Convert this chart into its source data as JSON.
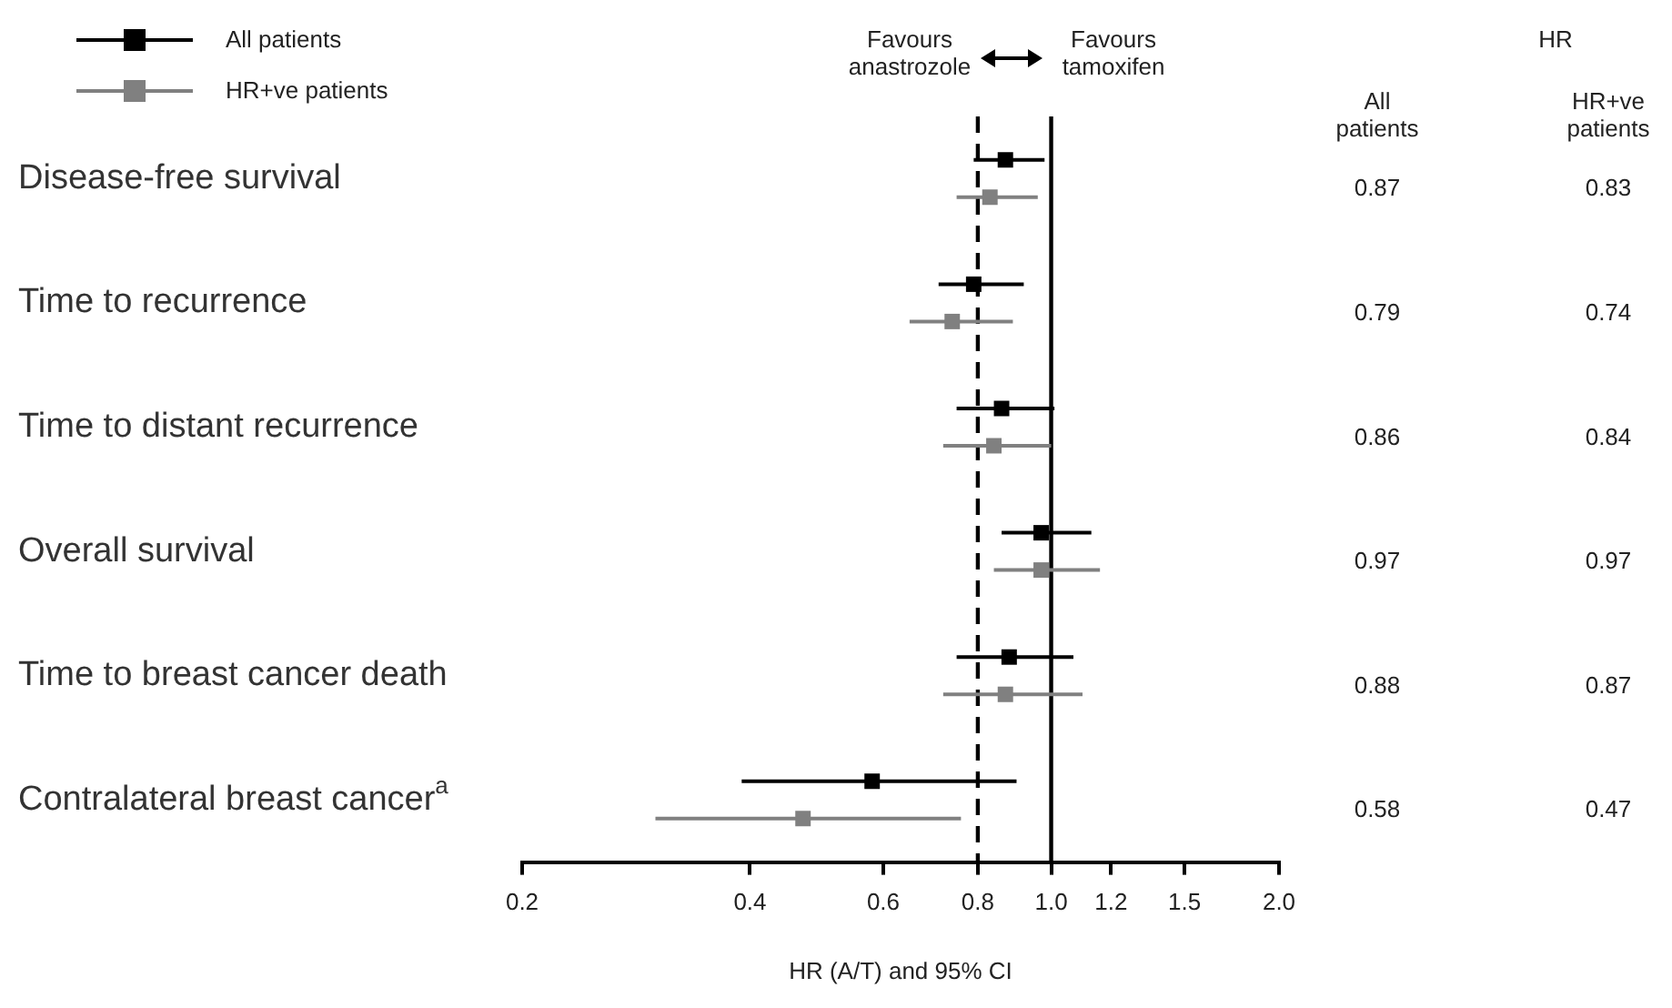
{
  "chart_data": {
    "type": "scatter",
    "orientation": "horizontal",
    "xlabel": "HR (A/T) and 95% CI",
    "log": "x",
    "xlim": [
      0.2,
      2.0
    ],
    "xticks": [
      0.2,
      0.4,
      0.6,
      0.8,
      {
        "value": 1,
        "label": "1.0"
      },
      1.2,
      1.5,
      {
        "value": 2,
        "label": "2.0"
      }
    ],
    "grid": false,
    "legend": "top left",
    "marker": "square",
    "categories": [
      "Disease-free survival",
      "Time to recurrence",
      "Time to distant recurrence",
      "Overall survival",
      "Time to breast cancer death",
      "Contralateral breast cancer$^{a}$"
    ],
    "ref_lines": [
      {
        "axis": "x",
        "value": 0.8,
        "line_style": "dashed"
      },
      {
        "axis": "x",
        "value": 1,
        "line_style": "solid"
      }
    ],
    "annotations": [
      "Favours anastrozole",
      "Favours tamoxifen",
      "HR"
    ],
    "series": [
      {
        "name": "All patients",
        "color": "#000000",
        "values": [
          0.87,
          0.79,
          0.86,
          0.97,
          0.88,
          0.58
        ],
        "errors": [
          [
            0.79,
            0.98
          ],
          [
            0.71,
            0.92
          ],
          [
            0.75,
            1.01
          ],
          [
            0.86,
            1.13
          ],
          [
            0.75,
            1.07
          ],
          [
            0.39,
            0.9
          ]
        ],
        "value_labels": [
          "0.87",
          "0.79",
          "0.86",
          "0.97",
          "0.88",
          "0.58"
        ]
      },
      {
        "name": "HR+ve patients",
        "color": "#808080",
        "values": [
          0.83,
          0.74,
          0.84,
          0.97,
          0.87,
          0.47
        ],
        "errors": [
          [
            0.75,
            0.96
          ],
          [
            0.65,
            0.89
          ],
          [
            0.72,
            1.0
          ],
          [
            0.84,
            1.16
          ],
          [
            0.72,
            1.1
          ],
          [
            0.3,
            0.76
          ]
        ],
        "value_labels": [
          "0.83",
          "0.74",
          "0.84",
          "0.97",
          "0.87",
          "0.47"
        ]
      }
    ]
  }
}
